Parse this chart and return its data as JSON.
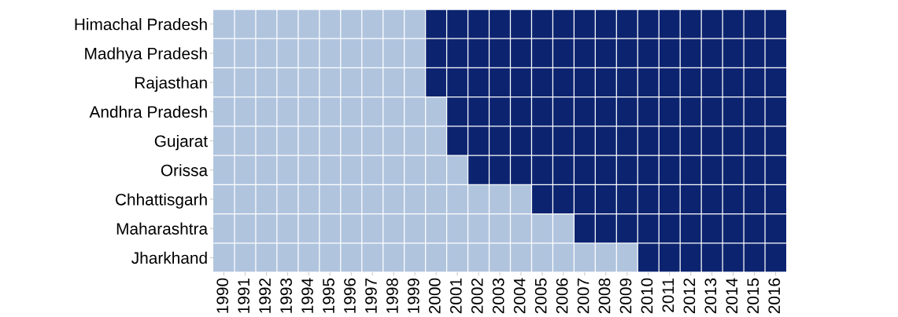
{
  "chart_data": {
    "type": "bar",
    "orientation": "horizontal",
    "grid": "x",
    "categories": [
      "Himachal Pradesh",
      "Madhya Pradesh",
      "Rajasthan",
      "Andhra Pradesh",
      "Gujarat",
      "Orissa",
      "Chhattisgarh",
      "Maharashtra",
      "Jharkhand"
    ],
    "series": [
      {
        "color": "#b0c4de",
        "base": [
          1989.5,
          1989.5,
          1989.5,
          1989.5,
          1989.5,
          1989.5,
          1989.5,
          1989.5,
          1989.5
        ],
        "values": [
          10,
          10,
          10,
          11,
          11,
          12,
          15,
          17,
          20
        ]
      },
      {
        "color": "#0c2470",
        "base": [
          1999.5,
          1999.5,
          1999.5,
          2000.5,
          2000.5,
          2001.5,
          2004.5,
          2006.5,
          2009.5
        ],
        "values": [
          17,
          17,
          17,
          16,
          16,
          15,
          12,
          10,
          7
        ]
      }
    ],
    "xlim": [
      1989.5,
      2016.5
    ],
    "xticks": [
      1990,
      1991,
      1992,
      1993,
      1994,
      1995,
      1996,
      1997,
      1998,
      1999,
      2000,
      2001,
      2002,
      2003,
      2004,
      2005,
      2006,
      2007,
      2008,
      2009,
      2010,
      2011,
      2012,
      2013,
      2014,
      2015,
      2016
    ]
  }
}
